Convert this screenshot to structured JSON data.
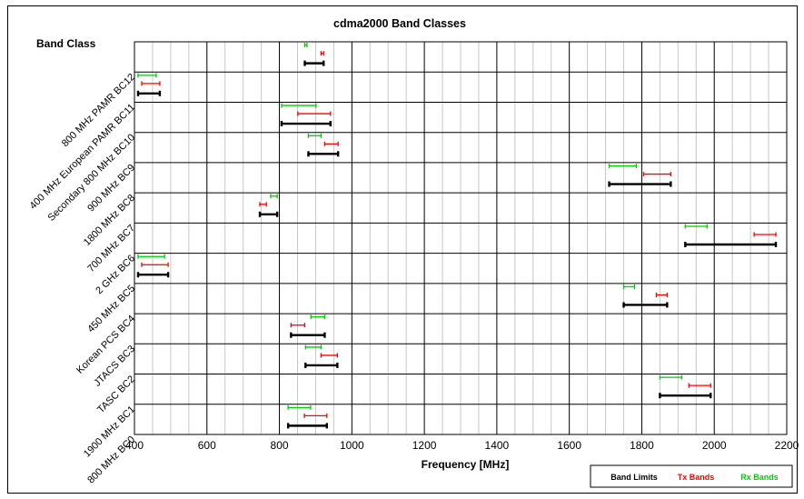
{
  "chart_data": {
    "type": "range-bar",
    "title": "cdma2000 Band Classes",
    "xlabel": "Frequency [MHz]",
    "ylabel": "Band Class",
    "xlim": [
      400,
      2200
    ],
    "xticks": [
      400,
      600,
      800,
      1000,
      1200,
      1400,
      1600,
      1800,
      2000,
      2200
    ],
    "grid": true,
    "legend_position": "bottom-right",
    "categories": [
      "800 MHz BC0",
      "1900 MHz BC1",
      "TASC BC2",
      "JTACS BC3",
      "Korean PCS BC4",
      "450 MHz BC5",
      "2 GHz BC6",
      "700 MHz BC7",
      "1800 MHz BC8",
      "900 MHz BC9",
      "Secondary 800 MHz BC10",
      "400 MHz European PAMR BC11",
      "800 MHz PAMR BC12"
    ],
    "series": [
      {
        "name": "Band Limits",
        "color": "#000000",
        "ranges": [
          [
            824,
            931
          ],
          [
            1850,
            1990
          ],
          [
            872,
            960
          ],
          [
            832,
            925
          ],
          [
            1750,
            1870
          ],
          [
            410,
            493
          ],
          [
            1920,
            2170
          ],
          [
            746,
            794
          ],
          [
            1710,
            1880
          ],
          [
            880,
            962
          ],
          [
            806,
            941
          ],
          [
            410,
            470
          ],
          [
            870,
            922
          ]
        ]
      },
      {
        "name": "Tx Bands",
        "color": "#ff0000",
        "ranges": [
          [
            869,
            931
          ],
          [
            1930,
            1990
          ],
          [
            915,
            960
          ],
          [
            832,
            870
          ],
          [
            1840,
            1870
          ],
          [
            420,
            493
          ],
          [
            2110,
            2170
          ],
          [
            746,
            764
          ],
          [
            1805,
            1880
          ],
          [
            925,
            962
          ],
          [
            851,
            941
          ],
          [
            420,
            470
          ],
          [
            915,
            922
          ]
        ]
      },
      {
        "name": "Rx Bands",
        "color": "#00cc00",
        "ranges": [
          [
            824,
            886
          ],
          [
            1850,
            1910
          ],
          [
            872,
            915
          ],
          [
            887,
            925
          ],
          [
            1750,
            1780
          ],
          [
            410,
            483
          ],
          [
            1920,
            1980
          ],
          [
            776,
            794
          ],
          [
            1710,
            1785
          ],
          [
            880,
            915
          ],
          [
            806,
            901
          ],
          [
            410,
            460
          ],
          [
            870,
            876
          ]
        ]
      }
    ]
  }
}
